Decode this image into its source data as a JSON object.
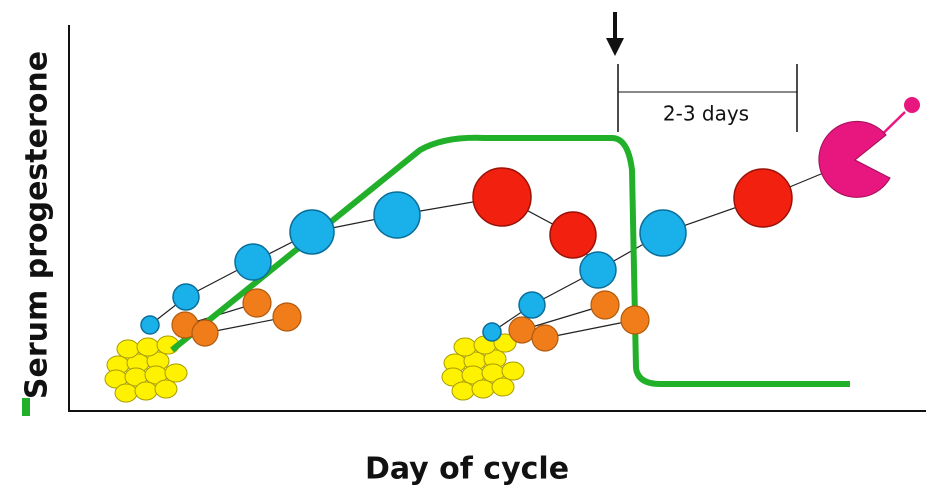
{
  "axes": {
    "y_label": "Serum progesterone",
    "x_label": "Day of cycle"
  },
  "annotation": "2-3 days"
}
